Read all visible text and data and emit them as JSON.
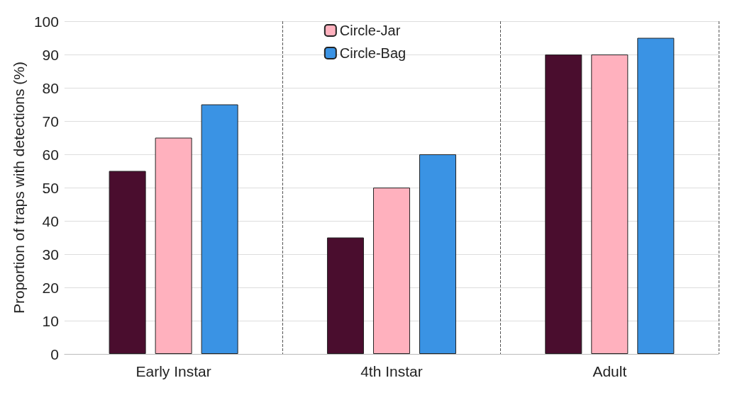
{
  "chart_data": {
    "type": "bar",
    "ylabel": "Proportion of traps with detections (%)",
    "categories": [
      "Early Instar",
      "4th Instar",
      "Adult"
    ],
    "series": [
      {
        "color": "#4a0d2e",
        "values": [
          55,
          35,
          90
        ]
      },
      {
        "name": "Circle-Jar",
        "color": "#ffb1be",
        "values": [
          65,
          50,
          90
        ]
      },
      {
        "name": "Circle-Bag",
        "color": "#3a93e4",
        "values": [
          75,
          60,
          95
        ]
      }
    ],
    "ylim": [
      0,
      100
    ],
    "yticks": [
      0,
      10,
      20,
      30,
      40,
      50,
      60,
      70,
      80,
      90,
      100
    ],
    "grid": true,
    "legend": "top"
  }
}
